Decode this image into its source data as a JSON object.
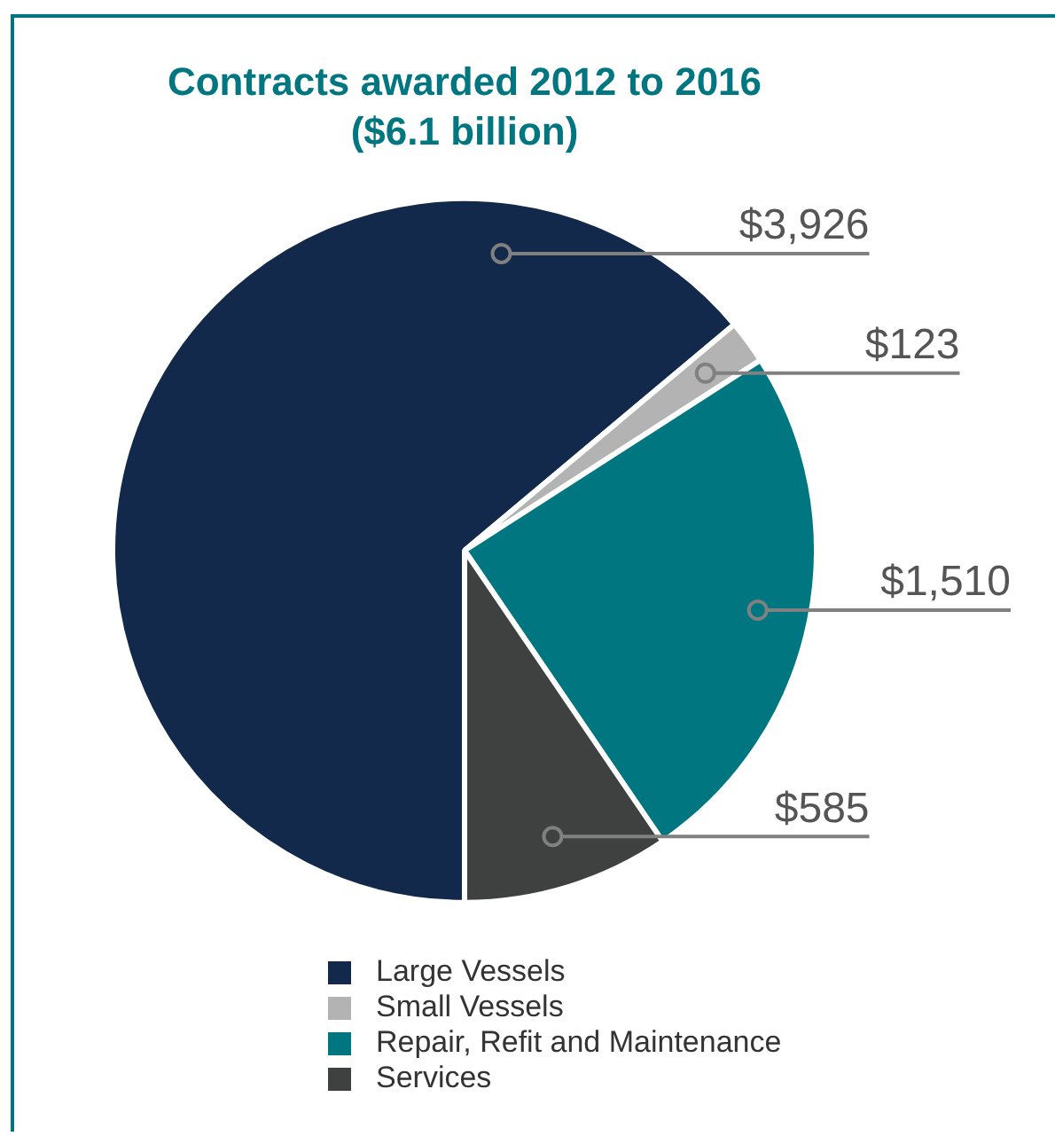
{
  "chart_data": {
    "type": "pie",
    "title": "Contracts awarded 2012 to 2016",
    "subtitle": "($6.1 billion)",
    "categories": [
      "Large Vessels",
      "Small Vessels",
      "Repair, Refit and Maintenance",
      "Services"
    ],
    "values": [
      3926,
      123,
      1510,
      585
    ],
    "colors": [
      "#13294b",
      "#b3b3b3",
      "#007680",
      "#3f4140"
    ],
    "value_labels": [
      "$3,926",
      "$123",
      "$1,510",
      "$585"
    ],
    "legend": "bottom"
  }
}
